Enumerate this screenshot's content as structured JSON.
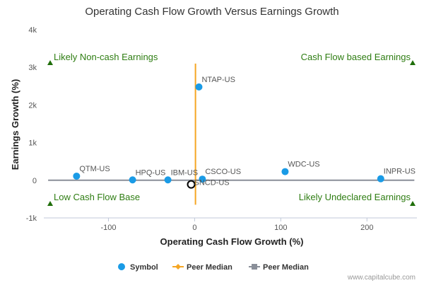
{
  "chart_data": {
    "type": "scatter",
    "title": "Operating Cash Flow Growth Versus Earnings Growth",
    "xlabel": "Operating Cash Flow Growth (%)",
    "ylabel": "Earnings Growth (%)",
    "xlim": [
      -175,
      258
    ],
    "ylim": [
      -1000,
      4000
    ],
    "x_ticks": [
      {
        "value": -100,
        "label": "-100"
      },
      {
        "value": 0,
        "label": "0"
      },
      {
        "value": 100,
        "label": "100"
      },
      {
        "value": 200,
        "label": "200"
      }
    ],
    "y_ticks": [
      {
        "value": -1000,
        "label": "-1k"
      },
      {
        "value": 0,
        "label": "0"
      },
      {
        "value": 1000,
        "label": "1k"
      },
      {
        "value": 2000,
        "label": "2k"
      },
      {
        "value": 3000,
        "label": "3k"
      },
      {
        "value": 4000,
        "label": "4k"
      }
    ],
    "points": [
      {
        "label": "NTAP-US",
        "x": 5,
        "y": 2480
      },
      {
        "label": "QTM-US",
        "x": -137,
        "y": 110
      },
      {
        "label": "HPQ-US",
        "x": -72,
        "y": 10
      },
      {
        "label": "IBM-US",
        "x": -31,
        "y": 10
      },
      {
        "label": "CSCO-US",
        "x": 9,
        "y": 30
      },
      {
        "label": "WDC-US",
        "x": 105,
        "y": 230
      },
      {
        "label": "INPR-US",
        "x": 216,
        "y": 40
      }
    ],
    "selected_point": {
      "label": "SNCD-US",
      "x": -4,
      "y": -110
    },
    "peer_median": {
      "x": 1,
      "y": 0
    },
    "peer_median_vline_range": [
      -650,
      3100
    ],
    "hline_x_range": [
      -170,
      255
    ],
    "quadrant_labels": {
      "top_left": "Likely Non-cash Earnings",
      "top_right": "Cash Flow based Earnings",
      "bottom_left": "Low Cash Flow Base",
      "bottom_right": "Likely Undeclared Earnings"
    },
    "legend": [
      {
        "label": "Symbol",
        "color": "#1a9be6",
        "marker": "circle"
      },
      {
        "label": "Peer Median",
        "color": "#f5a623",
        "marker": "diamond-line"
      },
      {
        "label": "Peer Median",
        "color": "#8a8f99",
        "marker": "square-line"
      }
    ],
    "colors": {
      "point": "#1a9be6",
      "vline": "#f5a623",
      "hline": "#8a8f99",
      "quadrant_text": "#2e7d12",
      "triangle": "#1f6e0a"
    },
    "grid": false,
    "credit": "www.capitalcube.com"
  }
}
